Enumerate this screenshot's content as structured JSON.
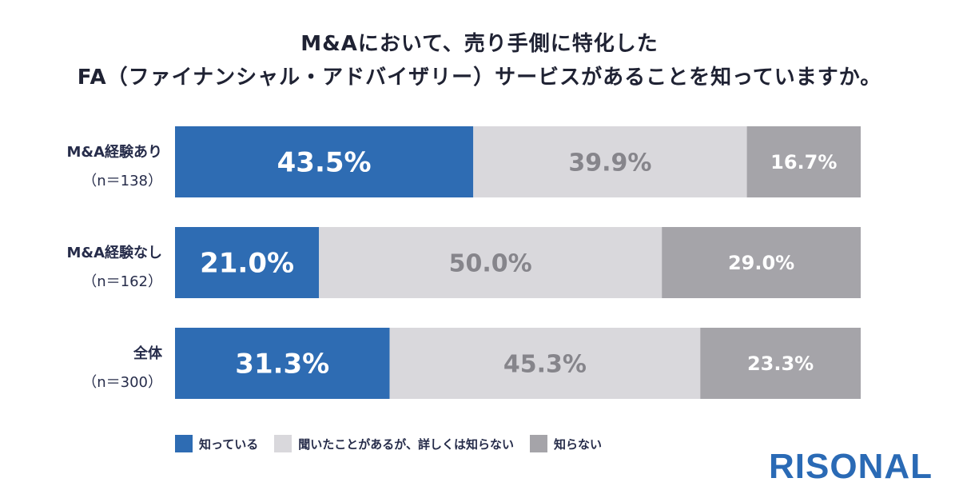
{
  "title_line1": "M&Aにおいて、売り手側に特化した",
  "title_line2": "FA（ファイナンシャル・アドバイザリー）サービスがあることを知っていますか。",
  "logo": "RISONAL",
  "colors": {
    "know": "#2e6cb3",
    "heard": "#d9d8dc",
    "unknown": "#a5a4a9",
    "text_dark": "#262c4a"
  },
  "chart_data": {
    "type": "bar",
    "orientation": "horizontal",
    "stacked": true,
    "percent_stacked": true,
    "categories": [
      "M&A経験あり",
      "M&A経験なし",
      "全体"
    ],
    "category_n": [
      "（n＝138）",
      "（n＝162）",
      "（n＝300）"
    ],
    "series": [
      {
        "name": "知っている",
        "values": [
          43.5,
          21.0,
          31.3
        ],
        "labels": [
          "43.5%",
          "21.0%",
          "31.3%"
        ],
        "color": "#2e6cb3",
        "label_color": "#ffffff"
      },
      {
        "name": "聞いたことがあるが、詳しくは知らない",
        "values": [
          39.9,
          50.0,
          45.3
        ],
        "labels": [
          "39.9%",
          "50.0%",
          "45.3%"
        ],
        "color": "#d9d8dc",
        "label_color": "#86858b"
      },
      {
        "name": "知らない",
        "values": [
          16.7,
          29.0,
          23.3
        ],
        "labels": [
          "16.7%",
          "29.0%",
          "23.3%"
        ],
        "color": "#a5a4a9",
        "label_color": "#ffffff"
      }
    ],
    "xlim": [
      0,
      100
    ],
    "grid": false,
    "legend_position": "bottom"
  }
}
